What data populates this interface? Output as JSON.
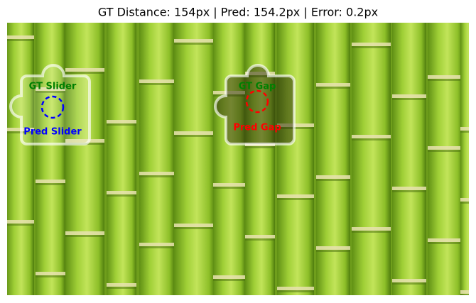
{
  "title": "GT Distance: 154px | Pred: 154.2px | Error: 0.2px",
  "annotations": [
    {
      "label": "GT Slider",
      "color": "green"
    },
    {
      "label": "Pred Slider",
      "color": "blue"
    },
    {
      "label": "GT Gap",
      "color": "green"
    },
    {
      "label": "Pred Gap",
      "color": "red"
    }
  ]
}
